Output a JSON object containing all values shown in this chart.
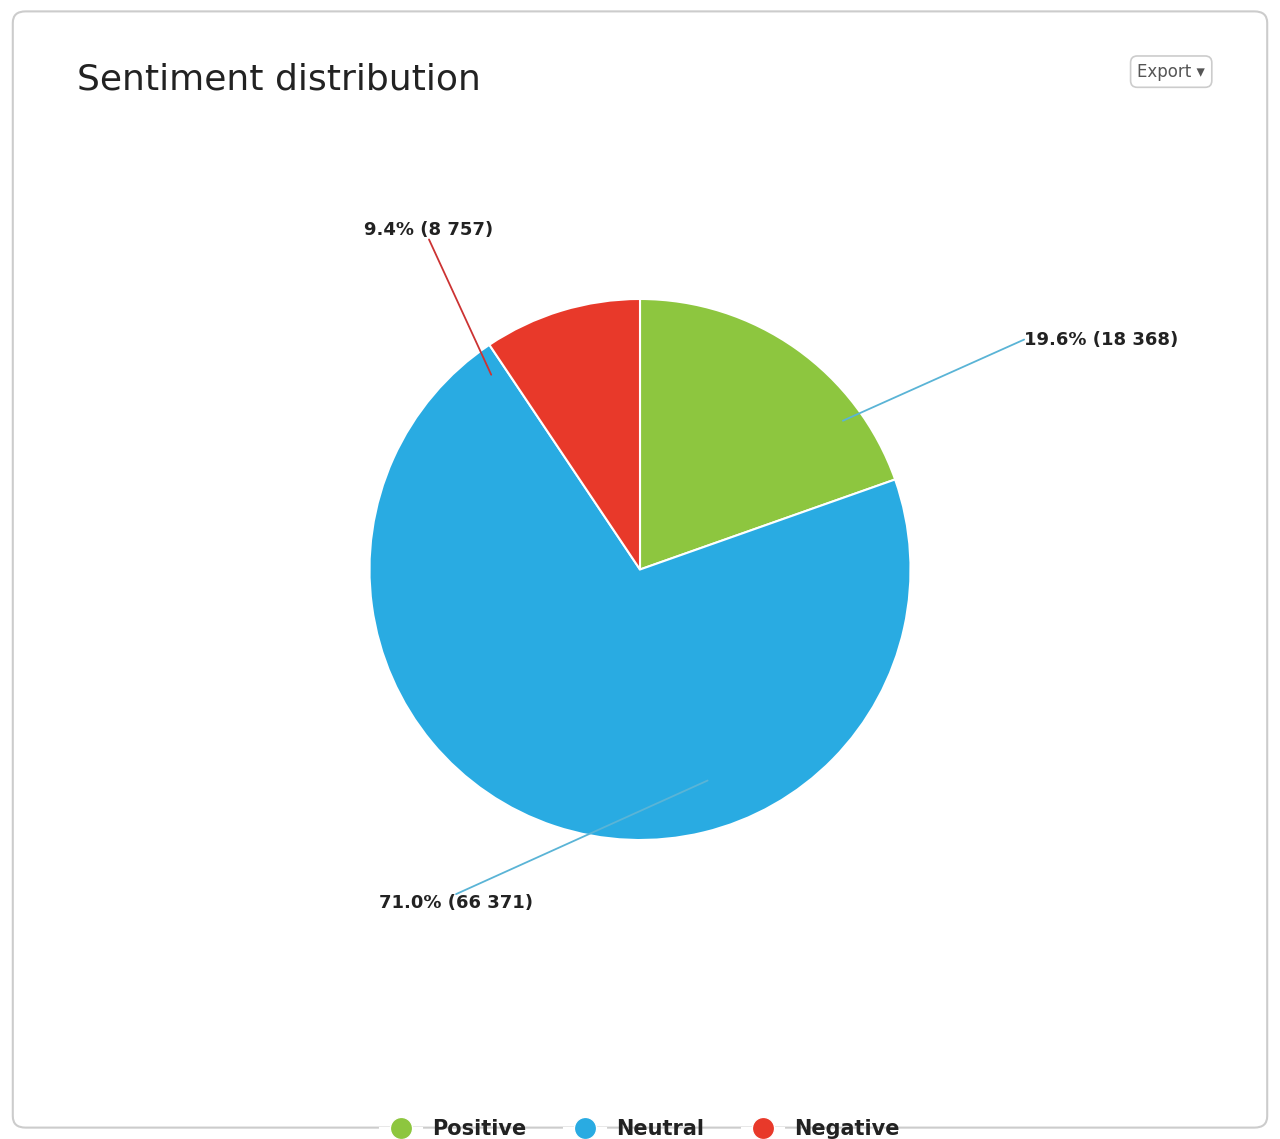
{
  "title": "Sentiment distribution",
  "slices": [
    {
      "label": "Positive",
      "value": 18368,
      "pct": 19.6,
      "color": "#8DC63F"
    },
    {
      "label": "Neutral",
      "value": 66371,
      "pct": 71.0,
      "color": "#29ABE2"
    },
    {
      "label": "Negative",
      "value": 8757,
      "pct": 9.4,
      "color": "#E8392A"
    }
  ],
  "annotation_labels": [
    "19.6% (18 368)",
    "71.0% (66 371)",
    "9.4% (8 757)"
  ],
  "background_color": "#ffffff",
  "title_fontsize": 26,
  "label_fontsize": 13,
  "legend_fontsize": 15,
  "export_button": "Export ▾",
  "start_angle": 90
}
